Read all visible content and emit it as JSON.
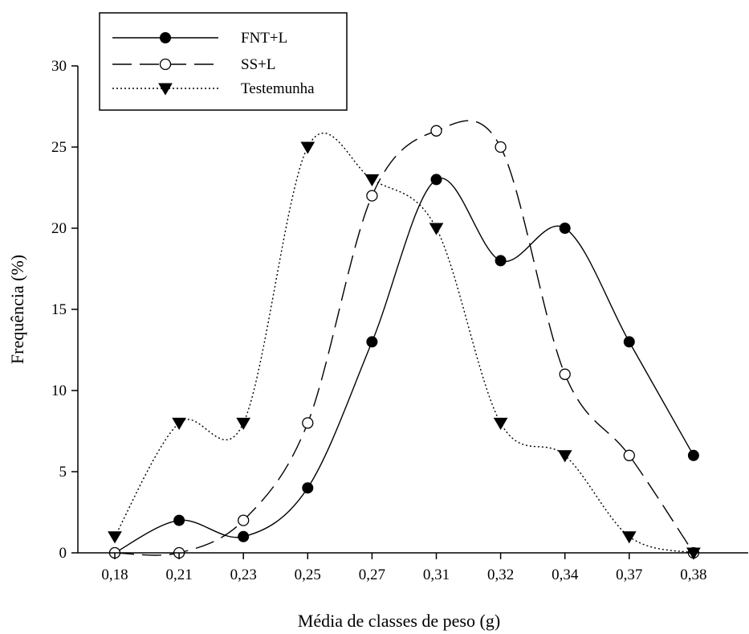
{
  "chart_data": {
    "type": "line",
    "title": "",
    "xlabel": "Média de classes de peso (g)",
    "ylabel": "Frequência (%)",
    "categories": [
      "0,18",
      "0,21",
      "0,23",
      "0,25",
      "0,27",
      "0,31",
      "0,32",
      "0,34",
      "0,37",
      "0,38"
    ],
    "ylim": [
      0,
      30
    ],
    "yticks": [
      0,
      5,
      10,
      15,
      20,
      25,
      30
    ],
    "grid": false,
    "legend_position": "top-left",
    "series": [
      {
        "name": "FNT+L",
        "line_style": "solid",
        "marker": "filled-circle",
        "values": [
          0,
          2,
          1,
          4,
          13,
          23,
          18,
          20,
          13,
          6
        ]
      },
      {
        "name": "SS+L",
        "line_style": "dashed",
        "marker": "open-circle",
        "values": [
          0,
          0,
          2,
          8,
          22,
          26,
          25,
          11,
          6,
          0
        ]
      },
      {
        "name": "Testemunha",
        "line_style": "dotted",
        "marker": "filled-triangle-down",
        "values": [
          1,
          8,
          8,
          25,
          23,
          20,
          8,
          6,
          1,
          0
        ]
      }
    ]
  }
}
